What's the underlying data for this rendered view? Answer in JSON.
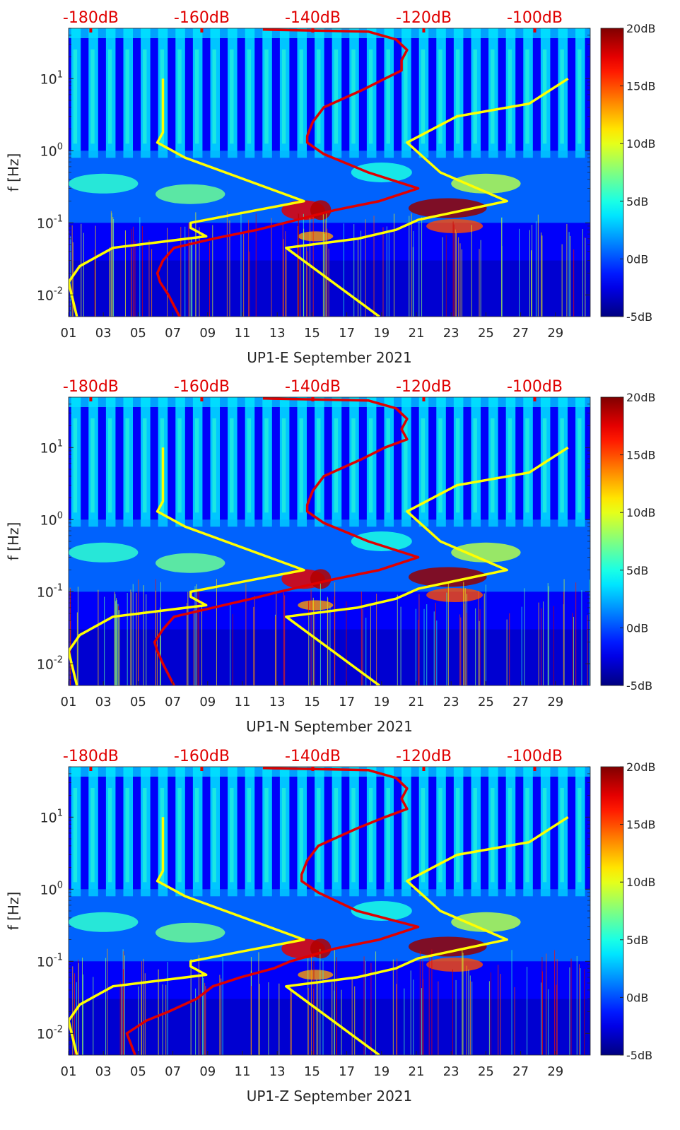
{
  "figure": {
    "colorbar": {
      "tick_labels": [
        "20dB",
        "15dB",
        "10dB",
        "5dB",
        "0dB",
        "-5dB"
      ],
      "tick_values": [
        20,
        15,
        10,
        5,
        0,
        -5
      ],
      "range": [
        -5,
        20
      ],
      "colormap": "jet"
    },
    "top_axis": {
      "tick_labels": [
        "-180dB",
        "-160dB",
        "-140dB",
        "-120dB",
        "-100dB"
      ],
      "tick_values": [
        -180,
        -160,
        -140,
        -120,
        -100
      ],
      "color": "#e00000"
    }
  },
  "chart_data": [
    {
      "type": "heatmap",
      "station": "UP1-E",
      "xlabel": "UP1-E September 2021",
      "ylabel": "f [Hz]",
      "x_tick_labels": [
        "01",
        "03",
        "05",
        "07",
        "09",
        "11",
        "13",
        "15",
        "17",
        "19",
        "21",
        "23",
        "25",
        "27",
        "29"
      ],
      "x_tick_values": [
        1,
        3,
        5,
        7,
        9,
        11,
        13,
        15,
        17,
        19,
        21,
        23,
        25,
        27,
        29
      ],
      "xlim": [
        1,
        31
      ],
      "y_scale": "log",
      "y_tick_labels": [
        "10^-2",
        "10^-1",
        "10^0",
        "10^1"
      ],
      "y_tick_values": [
        0.01,
        0.1,
        1,
        10
      ],
      "ylim": [
        0.005,
        50
      ],
      "top_xlim": [
        -184,
        -90
      ],
      "series": [
        {
          "name": "",
          "color": "#ffff00",
          "f": [
            0.005,
            0.015,
            0.025,
            0.045,
            0.065,
            0.085,
            0.1,
            0.2,
            0.8,
            1.3,
            1.8,
            10
          ],
          "top_x": [
            -182.5,
            -184,
            -182,
            -176,
            -159.2,
            -162,
            -162,
            -141.6,
            -163,
            -168,
            -167,
            -167
          ]
        },
        {
          "name": "",
          "color": "#ffff00",
          "f": [
            0.005,
            0.045,
            0.06,
            0.08,
            0.11,
            0.2,
            0.5,
            1.3,
            3,
            4.5,
            10
          ],
          "top_x": [
            -128,
            -144.8,
            -132,
            -125,
            -121,
            -105,
            -117,
            -123,
            -114,
            -101,
            -94
          ]
        },
        {
          "name": "",
          "color": "#e00000",
          "f": [
            0.005,
            0.01,
            0.015,
            0.02,
            0.03,
            0.045,
            0.06,
            0.08,
            0.1,
            0.15,
            0.2,
            0.3,
            0.5,
            0.9,
            1.3,
            1.6,
            2.5,
            4,
            7,
            10,
            13,
            18,
            25,
            35,
            45,
            48
          ],
          "top_x": [
            -164,
            -166,
            -167.5,
            -168,
            -167,
            -165,
            -158,
            -150,
            -145,
            -136,
            -128,
            -121,
            -130,
            -138,
            -141,
            -141,
            -140,
            -138,
            -131,
            -127,
            -124,
            -124,
            -123,
            -125,
            -130,
            -149
          ]
        }
      ]
    },
    {
      "type": "heatmap",
      "station": "UP1-N",
      "xlabel": "UP1-N September 2021",
      "ylabel": "f [Hz]",
      "x_tick_labels": [
        "01",
        "03",
        "05",
        "07",
        "09",
        "11",
        "13",
        "15",
        "17",
        "19",
        "21",
        "23",
        "25",
        "27",
        "29"
      ],
      "x_tick_values": [
        1,
        3,
        5,
        7,
        9,
        11,
        13,
        15,
        17,
        19,
        21,
        23,
        25,
        27,
        29
      ],
      "xlim": [
        1,
        31
      ],
      "y_scale": "log",
      "y_tick_labels": [
        "10^-2",
        "10^-1",
        "10^0",
        "10^1"
      ],
      "y_tick_values": [
        0.01,
        0.1,
        1,
        10
      ],
      "ylim": [
        0.005,
        50
      ],
      "top_xlim": [
        -184,
        -90
      ],
      "series": [
        {
          "name": "",
          "color": "#ffff00",
          "f": [
            0.005,
            0.015,
            0.025,
            0.045,
            0.065,
            0.085,
            0.1,
            0.2,
            0.8,
            1.3,
            1.8,
            10
          ],
          "top_x": [
            -182.5,
            -184,
            -182,
            -176,
            -159.2,
            -162,
            -162,
            -141.6,
            -163,
            -168,
            -167,
            -167
          ]
        },
        {
          "name": "",
          "color": "#ffff00",
          "f": [
            0.005,
            0.045,
            0.06,
            0.08,
            0.11,
            0.2,
            0.5,
            1.3,
            3,
            4.5,
            10
          ],
          "top_x": [
            -128,
            -144.8,
            -132,
            -125,
            -121,
            -105,
            -117,
            -123,
            -114,
            -101,
            -94
          ]
        },
        {
          "name": "",
          "color": "#e00000",
          "f": [
            0.005,
            0.01,
            0.015,
            0.02,
            0.03,
            0.045,
            0.06,
            0.08,
            0.1,
            0.15,
            0.2,
            0.3,
            0.5,
            0.9,
            1.3,
            1.6,
            2.5,
            4,
            7,
            10,
            13,
            18,
            25,
            35,
            45,
            48
          ],
          "top_x": [
            -165,
            -167,
            -168,
            -168.5,
            -167,
            -165,
            -158,
            -151,
            -146,
            -136,
            -128,
            -121,
            -130,
            -138,
            -141,
            -141,
            -140,
            -138,
            -131,
            -127,
            -123,
            -124,
            -123,
            -125,
            -130,
            -149
          ]
        }
      ]
    },
    {
      "type": "heatmap",
      "station": "UP1-Z",
      "xlabel": "UP1-Z September 2021",
      "ylabel": "f [Hz]",
      "x_tick_labels": [
        "01",
        "03",
        "05",
        "07",
        "09",
        "11",
        "13",
        "15",
        "17",
        "19",
        "21",
        "23",
        "25",
        "27",
        "29"
      ],
      "x_tick_values": [
        1,
        3,
        5,
        7,
        9,
        11,
        13,
        15,
        17,
        19,
        21,
        23,
        25,
        27,
        29
      ],
      "xlim": [
        1,
        31
      ],
      "y_scale": "log",
      "y_tick_labels": [
        "10^-2",
        "10^-1",
        "10^0",
        "10^1"
      ],
      "y_tick_values": [
        0.01,
        0.1,
        1,
        10
      ],
      "ylim": [
        0.005,
        50
      ],
      "top_xlim": [
        -184,
        -90
      ],
      "series": [
        {
          "name": "",
          "color": "#ffff00",
          "f": [
            0.005,
            0.015,
            0.025,
            0.045,
            0.065,
            0.085,
            0.1,
            0.2,
            0.8,
            1.3,
            1.8,
            10
          ],
          "top_x": [
            -182.5,
            -184,
            -182,
            -176,
            -159.2,
            -162,
            -162,
            -141.6,
            -163,
            -168,
            -167,
            -167
          ]
        },
        {
          "name": "",
          "color": "#ffff00",
          "f": [
            0.005,
            0.045,
            0.06,
            0.08,
            0.11,
            0.2,
            0.5,
            1.3,
            3,
            4.5,
            10
          ],
          "top_x": [
            -128,
            -144.8,
            -132,
            -125,
            -121,
            -105,
            -117,
            -123,
            -114,
            -101,
            -94
          ]
        },
        {
          "name": "",
          "color": "#e00000",
          "f": [
            0.005,
            0.01,
            0.015,
            0.02,
            0.03,
            0.045,
            0.06,
            0.08,
            0.1,
            0.15,
            0.2,
            0.3,
            0.5,
            0.9,
            1.3,
            1.6,
            2.5,
            4,
            7,
            10,
            13,
            18,
            25,
            35,
            45,
            48
          ],
          "top_x": [
            -172,
            -173.5,
            -170,
            -166,
            -161,
            -158,
            -153,
            -147,
            -144,
            -136,
            -128,
            -121,
            -132,
            -139,
            -142,
            -142,
            -141,
            -139,
            -132,
            -127,
            -123,
            -124,
            -123,
            -125,
            -130,
            -149
          ]
        }
      ]
    }
  ]
}
